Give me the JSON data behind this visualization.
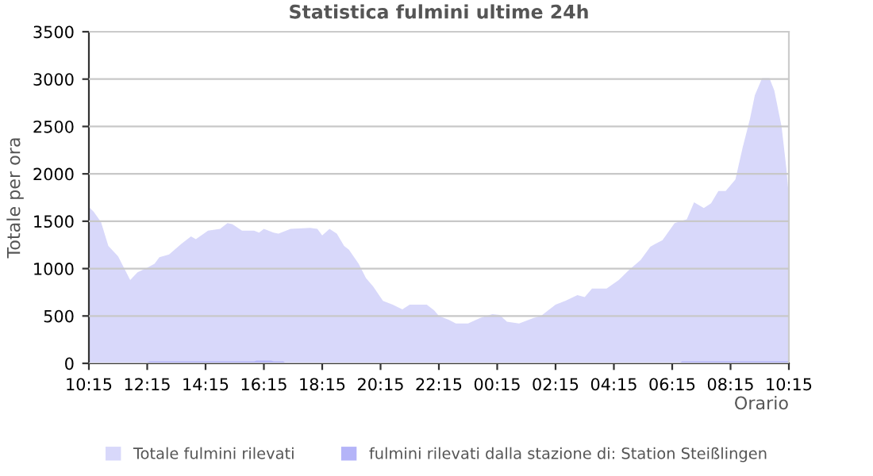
{
  "chart_data": {
    "type": "area",
    "title": "Statistica fulmini ultime 24h",
    "xlabel": "Orario",
    "ylabel": "Totale per ora",
    "series": [
      {
        "name": "Totale fulmini rilevati",
        "color": "#d8d8fa",
        "x": [
          "2000-01-01T10:15",
          "2000-01-01T10:25",
          "2000-01-01T10:40",
          "2000-01-01T10:55",
          "2000-01-01T11:15",
          "2000-01-01T11:40",
          "2000-01-01T11:55",
          "2000-01-01T12:15",
          "2000-01-01T12:30",
          "2000-01-01T12:40",
          "2000-01-01T13:00",
          "2000-01-01T13:25",
          "2000-01-01T13:45",
          "2000-01-01T13:55",
          "2000-01-01T14:20",
          "2000-01-01T14:45",
          "2000-01-01T15:00",
          "2000-01-01T15:10",
          "2000-01-01T15:30",
          "2000-01-01T15:55",
          "2000-01-01T16:05",
          "2000-01-01T16:15",
          "2000-01-01T16:35",
          "2000-01-01T16:45",
          "2000-01-01T17:10",
          "2000-01-01T17:50",
          "2000-01-01T18:05",
          "2000-01-01T18:15",
          "2000-01-01T18:30",
          "2000-01-01T18:45",
          "2000-01-01T19:00",
          "2000-01-01T19:10",
          "2000-01-01T19:30",
          "2000-01-01T19:45",
          "2000-01-01T20:00",
          "2000-01-01T20:20",
          "2000-01-01T20:40",
          "2000-01-01T21:00",
          "2000-01-01T21:15",
          "2000-01-01T21:50",
          "2000-01-01T22:05",
          "2000-01-01T22:15",
          "2000-01-01T22:35",
          "2000-01-01T22:50",
          "2000-01-01T23:15",
          "2000-01-01T23:40",
          "2000-01-02T00:05",
          "2000-01-02T00:20",
          "2000-01-02T00:35",
          "2000-01-02T01:00",
          "2000-01-02T01:30",
          "2000-01-02T01:45",
          "2000-01-02T02:15",
          "2000-01-02T02:35",
          "2000-01-02T03:00",
          "2000-01-02T03:15",
          "2000-01-02T03:30",
          "2000-01-02T04:00",
          "2000-01-02T04:25",
          "2000-01-02T04:45",
          "2000-01-02T05:10",
          "2000-01-02T05:30",
          "2000-01-02T05:40",
          "2000-01-02T05:55",
          "2000-01-02T06:20",
          "2000-01-02T06:45",
          "2000-01-02T07:00",
          "2000-01-02T07:20",
          "2000-01-02T07:35",
          "2000-01-02T07:50",
          "2000-01-02T08:05",
          "2000-01-02T08:25",
          "2000-01-02T08:40",
          "2000-01-02T08:55",
          "2000-01-02T09:05",
          "2000-01-02T09:20",
          "2000-01-02T09:35",
          "2000-01-02T09:45",
          "2000-01-02T10:00",
          "2000-01-02T10:10",
          "2000-01-02T10:15"
        ],
        "values": [
          1650,
          1600,
          1490,
          1240,
          1130,
          880,
          960,
          1010,
          1050,
          1120,
          1150,
          1260,
          1340,
          1310,
          1400,
          1420,
          1480,
          1470,
          1400,
          1400,
          1380,
          1420,
          1380,
          1370,
          1420,
          1430,
          1420,
          1350,
          1420,
          1370,
          1240,
          1200,
          1050,
          900,
          810,
          660,
          620,
          570,
          620,
          620,
          560,
          500,
          460,
          420,
          420,
          480,
          520,
          510,
          440,
          420,
          480,
          500,
          620,
          660,
          720,
          700,
          790,
          790,
          880,
          980,
          1090,
          1230,
          1260,
          1300,
          1480,
          1520,
          1700,
          1640,
          1690,
          1820,
          1820,
          1940,
          2280,
          2580,
          2830,
          3010,
          3010,
          2880,
          2500,
          2050,
          1750
        ]
      },
      {
        "name": "fulmini rilevati dalla stazione di: Station Steißlingen",
        "color": "#b4b4f8",
        "x": [
          "2000-01-01T10:15",
          "2000-01-01T12:10",
          "2000-01-01T12:20",
          "2000-01-01T15:55",
          "2000-01-01T16:00",
          "2000-01-01T16:30",
          "2000-01-01T16:35",
          "2000-01-01T16:55",
          "2000-01-01T17:00",
          "2000-01-02T06:30",
          "2000-01-02T06:35",
          "2000-01-02T10:15"
        ],
        "values": [
          0,
          0,
          20,
          20,
          30,
          30,
          20,
          20,
          0,
          0,
          20,
          20
        ]
      }
    ],
    "xlim": [
      "2000-01-01T10:15",
      "2000-01-02T10:15"
    ],
    "xticks": [
      {
        "value": "2000-01-01T10:15",
        "label": "10:15"
      },
      {
        "value": "2000-01-01T12:15",
        "label": "12:15"
      },
      {
        "value": "2000-01-01T14:15",
        "label": "14:15"
      },
      {
        "value": "2000-01-01T16:15",
        "label": "16:15"
      },
      {
        "value": "2000-01-01T18:15",
        "label": "18:15"
      },
      {
        "value": "2000-01-01T20:15",
        "label": "20:15"
      },
      {
        "value": "2000-01-01T22:15",
        "label": "22:15"
      },
      {
        "value": "2000-01-02T00:15",
        "label": "00:15"
      },
      {
        "value": "2000-01-02T02:15",
        "label": "02:15"
      },
      {
        "value": "2000-01-02T04:15",
        "label": "04:15"
      },
      {
        "value": "2000-01-02T06:15",
        "label": "06:15"
      },
      {
        "value": "2000-01-02T08:15",
        "label": "08:15"
      },
      {
        "value": "2000-01-02T10:15",
        "label": "10:15"
      }
    ],
    "ylim": [
      0,
      3500
    ],
    "yticks": [
      0,
      500,
      1000,
      1500,
      2000,
      2500,
      3000,
      3500
    ],
    "grid": "y",
    "legend": "bottom"
  }
}
